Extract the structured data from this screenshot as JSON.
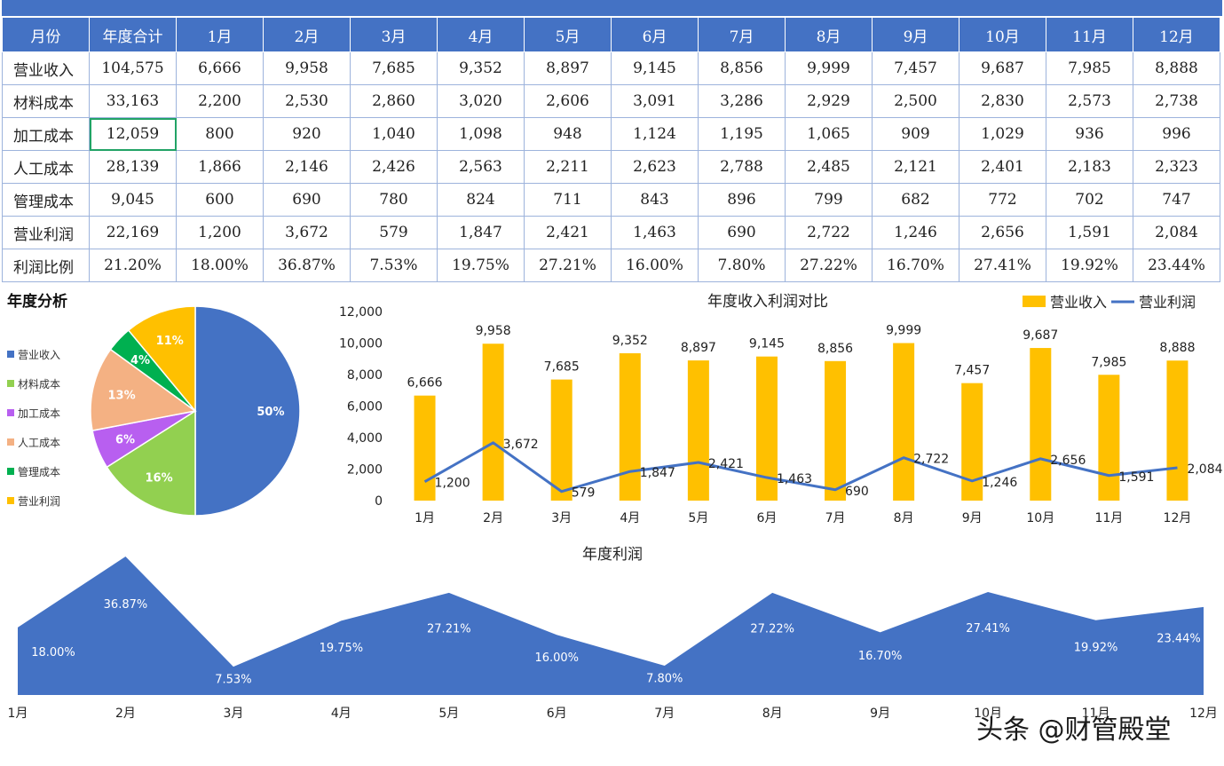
{
  "table": {
    "headers": [
      "月份",
      "年度合计",
      "1月",
      "2月",
      "3月",
      "4月",
      "5月",
      "6月",
      "7月",
      "8月",
      "9月",
      "10月",
      "11月",
      "12月"
    ],
    "rows": [
      {
        "label": "营业收入",
        "cells": [
          "104,575",
          "6,666",
          "9,958",
          "7,685",
          "9,352",
          "8,897",
          "9,145",
          "8,856",
          "9,999",
          "7,457",
          "9,687",
          "7,985",
          "8,888"
        ]
      },
      {
        "label": "材料成本",
        "cells": [
          "33,163",
          "2,200",
          "2,530",
          "2,860",
          "3,020",
          "2,606",
          "3,091",
          "3,286",
          "2,929",
          "2,500",
          "2,830",
          "2,573",
          "2,738"
        ]
      },
      {
        "label": "加工成本",
        "cells": [
          "12,059",
          "800",
          "920",
          "1,040",
          "1,098",
          "948",
          "1,124",
          "1,195",
          "1,065",
          "909",
          "1,029",
          "936",
          "996"
        ]
      },
      {
        "label": "人工成本",
        "cells": [
          "28,139",
          "1,866",
          "2,146",
          "2,426",
          "2,563",
          "2,211",
          "2,623",
          "2,788",
          "2,485",
          "2,121",
          "2,401",
          "2,183",
          "2,323"
        ]
      },
      {
        "label": "管理成本",
        "cells": [
          "9,045",
          "600",
          "690",
          "780",
          "824",
          "711",
          "843",
          "896",
          "799",
          "682",
          "772",
          "702",
          "747"
        ]
      },
      {
        "label": "营业利润",
        "cells": [
          "22,169",
          "1,200",
          "3,672",
          "579",
          "1,847",
          "2,421",
          "1,463",
          "690",
          "2,722",
          "1,246",
          "2,656",
          "1,591",
          "2,084"
        ]
      },
      {
        "label": "利润比例",
        "cells": [
          "21.20%",
          "18.00%",
          "36.87%",
          "7.53%",
          "19.75%",
          "27.21%",
          "16.00%",
          "7.80%",
          "27.22%",
          "16.70%",
          "27.41%",
          "19.92%",
          "23.44%"
        ]
      }
    ]
  },
  "chart_data": [
    {
      "type": "pie",
      "title": "年度分析",
      "categories": [
        "营业收入",
        "材料成本",
        "加工成本",
        "人工成本",
        "管理成本",
        "营业利润"
      ],
      "values": [
        50,
        16,
        6,
        13,
        4,
        11
      ],
      "labels": [
        "50%",
        "16%",
        "6%",
        "13%",
        "4%",
        "11%"
      ],
      "colors": [
        "#4472c4",
        "#92d050",
        "#b85ff0",
        "#f4b183",
        "#00b050",
        "#ffc000"
      ],
      "legend": "left"
    },
    {
      "type": "bar",
      "title": "年度收入利润对比",
      "categories": [
        "1月",
        "2月",
        "3月",
        "4月",
        "5月",
        "6月",
        "7月",
        "8月",
        "9月",
        "10月",
        "11月",
        "12月"
      ],
      "series": [
        {
          "name": "营业收入",
          "type": "bar",
          "color": "#ffc000",
          "values": [
            6666,
            9958,
            7685,
            9352,
            8897,
            9145,
            8856,
            9999,
            7457,
            9687,
            7985,
            8888
          ],
          "labels": [
            "6,666",
            "9,958",
            "7,685",
            "9,352",
            "8,897",
            "9,145",
            "8,856",
            "9,999",
            "7,457",
            "9,687",
            "7,985",
            "8,888"
          ]
        },
        {
          "name": "营业利润",
          "type": "line",
          "color": "#4472c4",
          "values": [
            1200,
            3672,
            579,
            1847,
            2421,
            1463,
            690,
            2722,
            1246,
            2656,
            1591,
            2084
          ],
          "labels": [
            "1,200",
            "3,672",
            "579",
            "1,847",
            "2,421",
            "1,463",
            "690",
            "2,722",
            "1,246",
            "2,656",
            "1,591",
            "2,084"
          ]
        }
      ],
      "ylim": [
        0,
        12000
      ],
      "yticks": [
        0,
        2000,
        4000,
        6000,
        8000,
        10000,
        12000
      ],
      "ytick_labels": [
        "0",
        "2,000",
        "4,000",
        "6,000",
        "8,000",
        "10,000",
        "12,000"
      ],
      "legend": "top-right"
    },
    {
      "type": "area",
      "title": "年度利润",
      "categories": [
        "1月",
        "2月",
        "3月",
        "4月",
        "5月",
        "6月",
        "7月",
        "8月",
        "9月",
        "10月",
        "11月",
        "12月"
      ],
      "series": [
        {
          "color": "#4472c4",
          "values": [
            18.0,
            36.87,
            7.53,
            19.75,
            27.21,
            16.0,
            7.8,
            27.22,
            16.7,
            27.41,
            19.92,
            23.44
          ],
          "labels": [
            "18.00%",
            "36.87%",
            "7.53%",
            "19.75%",
            "27.21%",
            "16.00%",
            "7.80%",
            "27.22%",
            "16.70%",
            "27.41%",
            "19.92%",
            "23.44%"
          ]
        }
      ]
    }
  ],
  "watermark": "头条 @财管殿堂"
}
